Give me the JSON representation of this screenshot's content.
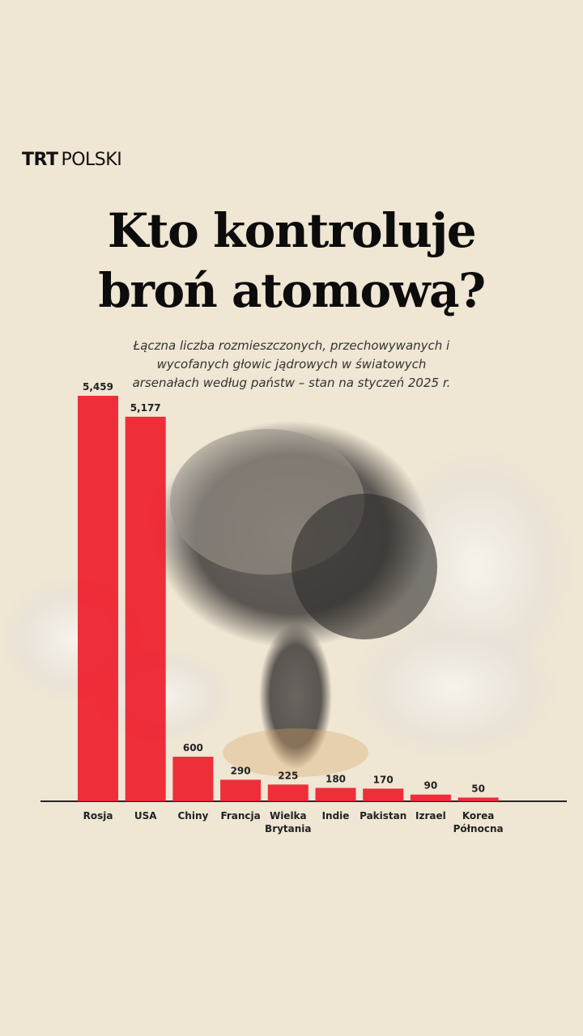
{
  "logo": {
    "part1": "TRT",
    "part2": "POLSKI"
  },
  "title": {
    "line1": "Kto kontroluje",
    "line2": "broń atomową?"
  },
  "subtitle": "Łączna liczba rozmieszczonych, przechowywanych i wycofanych głowic jądrowych w światowych arsenałach według państw – stan na styczeń 2025 r.",
  "colors": {
    "bar": "#ee1f2d",
    "background": "#efe6d3"
  },
  "chart_data": {
    "type": "bar",
    "title": "",
    "xlabel": "",
    "ylabel": "",
    "grid": false,
    "categories": [
      "Rosja",
      "USA",
      "Chiny",
      "Francja",
      "Wielka Brytania",
      "Indie",
      "Pakistan",
      "Izrael",
      "Korea Północna"
    ],
    "value_labels": [
      "5,459",
      "5,177",
      "600",
      "290",
      "225",
      "180",
      "170",
      "90",
      "50"
    ],
    "values": [
      5459,
      5177,
      600,
      290,
      225,
      180,
      170,
      90,
      50
    ],
    "ylim": [
      0,
      5459
    ]
  }
}
